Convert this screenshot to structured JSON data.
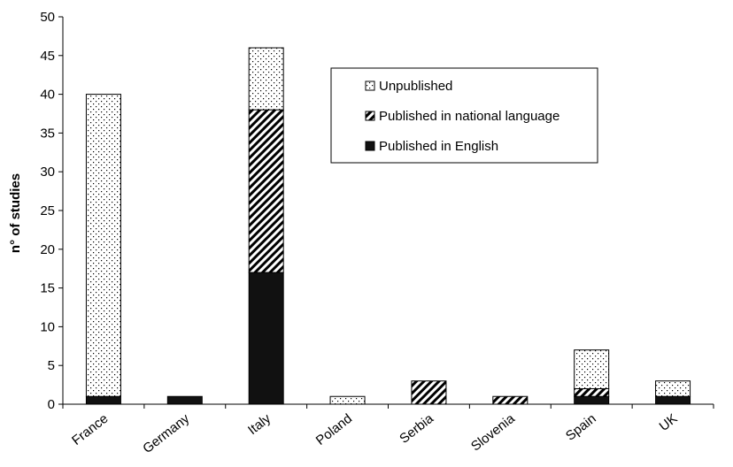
{
  "chart_data": {
    "type": "bar",
    "stacked": true,
    "ylabel": "n° of studies",
    "xlabel": "",
    "title": "",
    "ylim": [
      0,
      50
    ],
    "yticks": [
      0,
      5,
      10,
      15,
      20,
      25,
      30,
      35,
      40,
      45,
      50
    ],
    "categories": [
      "France",
      "Germany",
      "Italy",
      "Poland",
      "Serbia",
      "Slovenia",
      "Spain",
      "UK"
    ],
    "series": [
      {
        "name": "Published in English",
        "values": [
          1,
          1,
          17,
          0,
          0,
          0,
          1,
          1
        ],
        "pattern": "solid",
        "color": "#111111"
      },
      {
        "name": "Published in national language",
        "values": [
          0,
          0,
          21,
          0,
          3,
          1,
          1,
          0
        ],
        "pattern": "hatch",
        "color": "#111111"
      },
      {
        "name": "Unpublished",
        "values": [
          39,
          0,
          8,
          1,
          0,
          0,
          5,
          2
        ],
        "pattern": "dots",
        "color": "#111111"
      }
    ],
    "legend": {
      "placement": "top-right",
      "order": [
        "Unpublished",
        "Published in national language",
        "Published in English"
      ]
    },
    "grid": false
  }
}
